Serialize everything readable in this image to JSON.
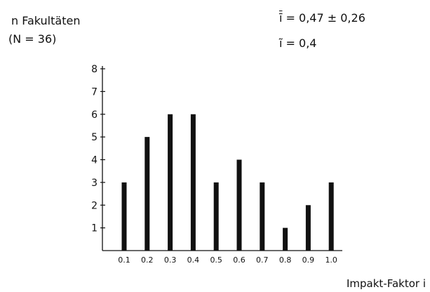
{
  "chart_data": {
    "type": "bar",
    "title": "",
    "ylabel_line1": "n Fakultäten",
    "ylabel_line2": "(N = 36)",
    "xlabel": "Impakt-Faktor  i",
    "stats": {
      "mean_symbol": "ī",
      "mean_text": "= 0,47 ± 0,26",
      "median_symbol": "ĩ",
      "median_text": "= 0,4"
    },
    "categories": [
      "0.1",
      "0.2",
      "0.3",
      "0.4",
      "0.5",
      "0.6",
      "0.7",
      "0.8",
      "0.9",
      "1.0"
    ],
    "values": [
      3,
      5,
      6,
      6,
      3,
      4,
      3,
      1,
      2,
      3
    ],
    "ylim": [
      0,
      8
    ],
    "yticks": [
      1,
      2,
      3,
      4,
      5,
      6,
      7,
      8
    ],
    "grid": false,
    "bar_color": "#111111"
  }
}
